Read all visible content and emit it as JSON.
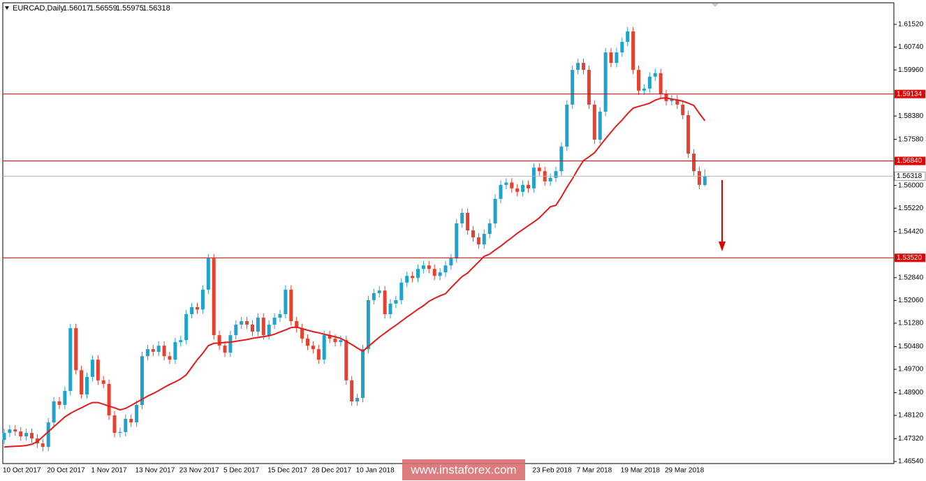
{
  "chart_data": {
    "type": "candlestick",
    "title": "EURCAD,Daily",
    "watermark": "www.instaforex.com",
    "up_color": "#1fa3cc",
    "down_color": "#e8402e",
    "ylim": [
      1.4647,
      1.6226
    ],
    "yticks": [
      {
        "value": 1.6152,
        "label": "1.61520"
      },
      {
        "value": 1.6074,
        "label": "1.60740"
      },
      {
        "value": 1.5996,
        "label": "1.59960"
      },
      {
        "value": 1.5838,
        "label": "1.58380"
      },
      {
        "value": 1.5758,
        "label": "1.57580"
      },
      {
        "value": 1.56,
        "label": "1.56000"
      },
      {
        "value": 1.5522,
        "label": "1.55220"
      },
      {
        "value": 1.5442,
        "label": "1.54420"
      },
      {
        "value": 1.5284,
        "label": "1.52840"
      },
      {
        "value": 1.5206,
        "label": "1.52060"
      },
      {
        "value": 1.5128,
        "label": "1.51280"
      },
      {
        "value": 1.5048,
        "label": "1.50480"
      },
      {
        "value": 1.497,
        "label": "1.49700"
      },
      {
        "value": 1.489,
        "label": "1.48900"
      },
      {
        "value": 1.4812,
        "label": "1.48120"
      },
      {
        "value": 1.4732,
        "label": "1.47320"
      },
      {
        "value": 1.4654,
        "label": "1.46540"
      }
    ],
    "level_color": "#e00000",
    "levels": [
      {
        "value": 1.59134
      },
      {
        "value": 1.5684,
        "label": "1.56840"
      },
      {
        "value": 1.5352,
        "label": "1.53520"
      }
    ],
    "categories": [
      "10 Oct 2017",
      null,
      null,
      null,
      null,
      null,
      null,
      null,
      "20 Oct 2017",
      null,
      null,
      null,
      null,
      null,
      null,
      null,
      "1 Nov 2017",
      null,
      null,
      null,
      null,
      null,
      null,
      null,
      "13 Nov 2017",
      null,
      null,
      null,
      null,
      null,
      null,
      null,
      "23 Nov 2017",
      null,
      null,
      null,
      null,
      null,
      null,
      null,
      "5 Dec 2017",
      null,
      null,
      null,
      null,
      null,
      null,
      null,
      "15 Dec 2017",
      null,
      null,
      null,
      null,
      null,
      null,
      null,
      "28 Dec 2017",
      null,
      null,
      null,
      null,
      null,
      null,
      null,
      "10 Jan 2018",
      null,
      null,
      null,
      null,
      null,
      null,
      null,
      null,
      null,
      null,
      null,
      null,
      null,
      null,
      null,
      null,
      null,
      null,
      null,
      null,
      null,
      null,
      null,
      null,
      null,
      null,
      null,
      null,
      null,
      null,
      null,
      "23 Feb 2018",
      null,
      null,
      null,
      null,
      null,
      null,
      null,
      "7 Mar 2018",
      null,
      null,
      null,
      null,
      null,
      null,
      null,
      "19 Mar 2018",
      null,
      null,
      null,
      null,
      null,
      null,
      null,
      "29 Mar 2018",
      null,
      null,
      null,
      null,
      null,
      null,
      null
    ],
    "open": [
      1.4728,
      1.4752,
      1.4764,
      1.4757,
      1.474,
      1.4752,
      1.4733,
      1.4716,
      1.4704,
      1.4788,
      1.486,
      1.4848,
      1.4896,
      1.5111,
      1.4967,
      1.4884,
      1.4944,
      1.5003,
      1.4932,
      1.492,
      1.4812,
      1.4752,
      1.4755,
      1.48,
      1.4788,
      1.4848,
      1.5015,
      1.5039,
      1.503,
      1.5051,
      1.5015,
      1.5003,
      1.5063,
      1.507,
      1.5159,
      1.5183,
      1.5175,
      1.5243,
      1.535,
      1.5087,
      1.5051,
      1.5027,
      1.5087,
      1.5123,
      1.5135,
      1.5123,
      1.5099,
      1.5147,
      1.5087,
      1.5123,
      1.5147,
      1.5159,
      1.5243,
      1.5135,
      1.5111,
      1.5075,
      1.5051,
      1.5039,
      1.5003,
      1.5087,
      1.5075,
      1.5063,
      1.507,
      1.4932,
      1.486,
      1.4872,
      1.5039,
      1.5207,
      1.5231,
      1.524,
      1.5159,
      1.5195,
      1.5207,
      1.5267,
      1.529,
      1.5283,
      1.5314,
      1.5326,
      1.5314,
      1.529,
      1.5302,
      1.5326,
      1.535,
      1.547,
      1.5506,
      1.5446,
      1.5422,
      1.5398,
      1.5434,
      1.547,
      1.5554,
      1.5602,
      1.561,
      1.559,
      1.5578,
      1.5602,
      1.559,
      1.5661,
      1.5649,
      1.5614,
      1.5626,
      1.5649,
      1.5733,
      1.5877,
      1.5996,
      1.602,
      1.5996,
      1.5877,
      1.5757,
      1.5853,
      1.6056,
      1.602,
      1.6056,
      1.6092,
      1.6128,
      1.5996,
      1.5925,
      1.5932,
      1.5973,
      1.5985,
      1.5913,
      1.5889,
      1.5895,
      1.5877,
      1.5841,
      1.5709,
      1.5649,
      1.56017
    ],
    "high": [
      1.4767,
      1.4779,
      1.4779,
      1.4772,
      1.4767,
      1.4767,
      1.4748,
      1.4731,
      1.4803,
      1.4875,
      1.4875,
      1.4911,
      1.5126,
      1.5126,
      1.4982,
      1.4959,
      1.5018,
      1.5018,
      1.4947,
      1.4935,
      1.4827,
      1.477,
      1.4815,
      1.4815,
      1.4863,
      1.503,
      1.5054,
      1.5054,
      1.5066,
      1.5066,
      1.503,
      1.5078,
      1.5085,
      1.5174,
      1.5198,
      1.5198,
      1.5258,
      1.5365,
      1.5365,
      1.5102,
      1.5066,
      1.5102,
      1.5138,
      1.515,
      1.515,
      1.5138,
      1.5162,
      1.5162,
      1.5138,
      1.5162,
      1.5174,
      1.5258,
      1.5258,
      1.515,
      1.5126,
      1.509,
      1.5066,
      1.5054,
      1.5102,
      1.5102,
      1.509,
      1.5085,
      1.5085,
      1.4947,
      1.4887,
      1.5054,
      1.5222,
      1.5246,
      1.5255,
      1.5255,
      1.521,
      1.5222,
      1.5282,
      1.5305,
      1.5305,
      1.5329,
      1.5341,
      1.5341,
      1.5329,
      1.5317,
      1.5341,
      1.5365,
      1.5485,
      1.5521,
      1.5521,
      1.5461,
      1.5437,
      1.5449,
      1.5485,
      1.5569,
      1.5617,
      1.5625,
      1.5625,
      1.5605,
      1.5617,
      1.5617,
      1.5676,
      1.5676,
      1.5664,
      1.5641,
      1.5664,
      1.5748,
      1.5892,
      1.6011,
      1.6035,
      1.6035,
      1.6011,
      1.5892,
      1.5868,
      1.6071,
      1.6071,
      1.6071,
      1.6107,
      1.6143,
      1.6143,
      1.6011,
      1.5947,
      1.5988,
      1.6,
      1.6,
      1.5928,
      1.591,
      1.591,
      1.5892,
      1.5856,
      1.5724,
      1.5664,
      1.56559
    ],
    "low": [
      1.4713,
      1.4737,
      1.4742,
      1.4725,
      1.4725,
      1.4718,
      1.4701,
      1.4689,
      1.4689,
      1.4773,
      1.4833,
      1.4833,
      1.4881,
      1.4952,
      1.4869,
      1.4869,
      1.4929,
      1.4917,
      1.4905,
      1.4797,
      1.4737,
      1.4737,
      1.474,
      1.4773,
      1.4773,
      1.4833,
      1.5,
      1.5015,
      1.5015,
      1.5,
      1.4988,
      1.4988,
      1.5048,
      1.5055,
      1.5144,
      1.516,
      1.516,
      1.5228,
      1.5072,
      1.5036,
      1.5012,
      1.5012,
      1.5072,
      1.5108,
      1.5108,
      1.5084,
      1.5084,
      1.5072,
      1.5072,
      1.5108,
      1.5132,
      1.5144,
      1.512,
      1.5096,
      1.506,
      1.5036,
      1.5024,
      1.4988,
      1.4988,
      1.506,
      1.5048,
      1.5048,
      1.4917,
      1.4845,
      1.4845,
      1.4857,
      1.5024,
      1.5192,
      1.5216,
      1.5144,
      1.5144,
      1.518,
      1.5192,
      1.5252,
      1.5268,
      1.5268,
      1.5299,
      1.5299,
      1.5275,
      1.5275,
      1.5287,
      1.5311,
      1.5335,
      1.5455,
      1.5431,
      1.5407,
      1.5383,
      1.5383,
      1.5419,
      1.5455,
      1.5539,
      1.5587,
      1.5575,
      1.5563,
      1.5563,
      1.5575,
      1.5575,
      1.5634,
      1.5599,
      1.5599,
      1.5611,
      1.5634,
      1.5718,
      1.5862,
      1.5981,
      1.5981,
      1.5862,
      1.5742,
      1.5742,
      1.5838,
      1.6005,
      1.6005,
      1.6041,
      1.6077,
      1.5981,
      1.591,
      1.591,
      1.5917,
      1.5958,
      1.5898,
      1.5874,
      1.5874,
      1.5862,
      1.5826,
      1.5694,
      1.5634,
      1.5587,
      1.55975
    ],
    "close": [
      1.4752,
      1.4764,
      1.4757,
      1.474,
      1.4752,
      1.4733,
      1.4716,
      1.4704,
      1.4788,
      1.486,
      1.4848,
      1.4896,
      1.5111,
      1.4967,
      1.4884,
      1.4944,
      1.5003,
      1.4932,
      1.492,
      1.4812,
      1.4752,
      1.4755,
      1.48,
      1.4788,
      1.4848,
      1.5015,
      1.5039,
      1.503,
      1.5051,
      1.5015,
      1.5003,
      1.5063,
      1.507,
      1.5159,
      1.5183,
      1.5175,
      1.5243,
      1.535,
      1.5087,
      1.5051,
      1.5027,
      1.5087,
      1.5123,
      1.5135,
      1.5123,
      1.5099,
      1.5147,
      1.5087,
      1.5123,
      1.5147,
      1.5159,
      1.5243,
      1.5135,
      1.5111,
      1.5075,
      1.5051,
      1.5039,
      1.5003,
      1.5087,
      1.5075,
      1.5063,
      1.507,
      1.4932,
      1.486,
      1.4872,
      1.5039,
      1.5207,
      1.5231,
      1.524,
      1.5159,
      1.5195,
      1.5207,
      1.5267,
      1.529,
      1.5283,
      1.5314,
      1.5326,
      1.5314,
      1.529,
      1.5302,
      1.5326,
      1.535,
      1.547,
      1.5506,
      1.5446,
      1.5422,
      1.5398,
      1.5434,
      1.547,
      1.5554,
      1.5602,
      1.561,
      1.559,
      1.5578,
      1.5602,
      1.559,
      1.5661,
      1.5649,
      1.5614,
      1.5626,
      1.5649,
      1.5733,
      1.5877,
      1.5996,
      1.602,
      1.5996,
      1.5877,
      1.5757,
      1.5853,
      1.6056,
      1.602,
      1.6056,
      1.6092,
      1.6128,
      1.5996,
      1.5925,
      1.5932,
      1.5973,
      1.5985,
      1.5913,
      1.5889,
      1.5895,
      1.5877,
      1.5841,
      1.5709,
      1.5649,
      1.5602,
      1.56318
    ],
    "ma": {
      "color": "#e31a1a",
      "values": [
        1.4704,
        1.4705,
        1.4706,
        1.4707,
        1.4709,
        1.4713,
        1.4722,
        1.4739,
        1.4756,
        1.4773,
        1.479,
        1.4807,
        1.4819,
        1.4829,
        1.4838,
        1.4848,
        1.4856,
        1.4856,
        1.485,
        1.4844,
        1.4838,
        1.4831,
        1.4836,
        1.4846,
        1.4857,
        1.4867,
        1.4878,
        1.4887,
        1.4897,
        1.4908,
        1.4918,
        1.4927,
        1.4937,
        1.4951,
        1.4977,
        1.5003,
        1.5025,
        1.5051,
        1.5059,
        1.506,
        1.5062,
        1.5063,
        1.5066,
        1.5069,
        1.5072,
        1.5076,
        1.5079,
        1.5082,
        1.5085,
        1.509,
        1.5098,
        1.5105,
        1.5113,
        1.5115,
        1.5109,
        1.5104,
        1.5099,
        1.5095,
        1.509,
        1.5086,
        1.5081,
        1.5076,
        1.5066,
        1.5055,
        1.5043,
        1.5032,
        1.5048,
        1.5064,
        1.508,
        1.5094,
        1.5108,
        1.5121,
        1.5135,
        1.5149,
        1.5162,
        1.5176,
        1.5188,
        1.5203,
        1.5213,
        1.5222,
        1.5229,
        1.525,
        1.5269,
        1.5288,
        1.53,
        1.5319,
        1.5338,
        1.5357,
        1.5365,
        1.5379,
        1.5392,
        1.5407,
        1.5421,
        1.5436,
        1.5449,
        1.5462,
        1.5475,
        1.5489,
        1.5508,
        1.5527,
        1.5532,
        1.5561,
        1.5594,
        1.5623,
        1.5656,
        1.5685,
        1.5698,
        1.5712,
        1.5736,
        1.576,
        1.5783,
        1.5805,
        1.5824,
        1.5846,
        1.5865,
        1.5871,
        1.5876,
        1.5882,
        1.5892,
        1.5899,
        1.59,
        1.5896,
        1.5893,
        1.5889,
        1.5882,
        1.5874,
        1.5847,
        1.5822
      ]
    }
  }
}
